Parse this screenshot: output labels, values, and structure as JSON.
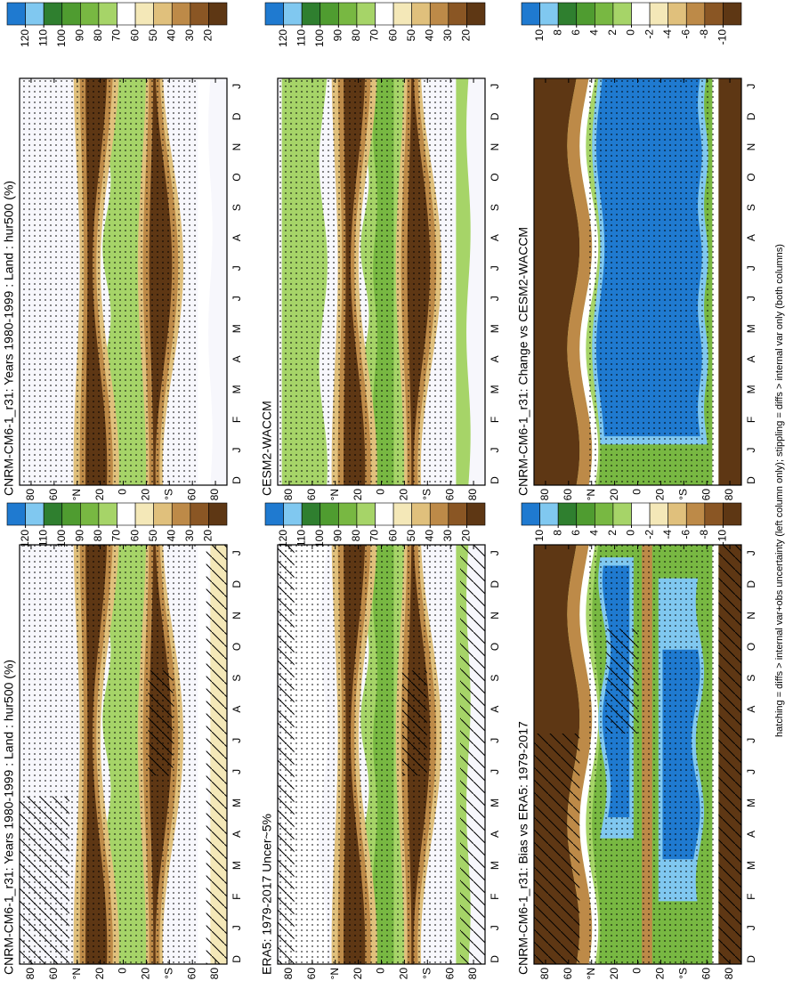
{
  "chart_data": [
    {
      "type": "heatmap",
      "title": "CNRM-CM6-1_r31: Years 1980-1999 : Land : hur500 (%)",
      "categories": [
        "D",
        "J",
        "F",
        "M",
        "A",
        "M",
        "J",
        "J",
        "A",
        "S",
        "O",
        "N",
        "D",
        "J"
      ],
      "ylim": [
        90,
        -90
      ],
      "yticks": [
        80,
        60,
        {
          "value": 40,
          "label": "°N"
        },
        20,
        0,
        {
          "value": -20,
          "label": "20"
        },
        {
          "value": -40,
          "label": "°S"
        },
        {
          "value": -60,
          "label": "60"
        },
        {
          "value": -80,
          "label": "80"
        }
      ],
      "colorbar": {
        "ticks": [
          120,
          110,
          100,
          90,
          80,
          70,
          60,
          50,
          40,
          30,
          20
        ],
        "colors": [
          "#1f7ad0",
          "#80c8f0",
          "#2f7f2f",
          "#4f9c30",
          "#78b842",
          "#a6d468",
          "#ffffff",
          "#f4e8b8",
          "#e0c07c",
          "#bd8a48",
          "#8a5624",
          "#5e3714"
        ]
      },
      "hatching": true
    },
    {
      "type": "heatmap",
      "title": "ERA5: 1979-2017 Uncer~5%",
      "categories": [
        "D",
        "J",
        "F",
        "M",
        "A",
        "M",
        "J",
        "J",
        "A",
        "S",
        "O",
        "N",
        "D",
        "J"
      ],
      "ylim": [
        90,
        -90
      ],
      "yticks": [
        80,
        60,
        {
          "value": 40,
          "label": "°N"
        },
        20,
        0,
        {
          "value": -20,
          "label": "20"
        },
        {
          "value": -40,
          "label": "°S"
        },
        {
          "value": -60,
          "label": "60"
        },
        {
          "value": -80,
          "label": "80"
        }
      ],
      "colorbar": {
        "ticks": [
          120,
          110,
          100,
          90,
          80,
          70,
          60,
          50,
          40,
          30,
          20
        ],
        "colors": [
          "#1f7ad0",
          "#80c8f0",
          "#2f7f2f",
          "#4f9c30",
          "#78b842",
          "#a6d468",
          "#ffffff",
          "#f4e8b8",
          "#e0c07c",
          "#bd8a48",
          "#8a5624",
          "#5e3714"
        ]
      },
      "hatching": true
    },
    {
      "type": "heatmap",
      "title": "CNRM-CM6-1_r31: Bias vs ERA5: 1979-2017",
      "categories": [
        "D",
        "J",
        "F",
        "M",
        "A",
        "M",
        "J",
        "J",
        "A",
        "S",
        "O",
        "N",
        "D",
        "J"
      ],
      "ylim": [
        90,
        -90
      ],
      "yticks": [
        80,
        60,
        {
          "value": 40,
          "label": "°N"
        },
        20,
        0,
        {
          "value": -20,
          "label": "20"
        },
        {
          "value": -40,
          "label": "°S"
        },
        {
          "value": -60,
          "label": "60"
        },
        {
          "value": -80,
          "label": "80"
        }
      ],
      "colorbar": {
        "ticks": [
          10,
          8,
          6,
          4,
          2,
          0,
          -2,
          -4,
          -6,
          -8,
          -10
        ],
        "colors": [
          "#1f7ad0",
          "#80c8f0",
          "#2f7f2f",
          "#4f9c30",
          "#78b842",
          "#a6d468",
          "#ffffff",
          "#f4e8b8",
          "#e0c07c",
          "#bd8a48",
          "#8a5624",
          "#5e3714"
        ]
      },
      "hatching": true
    },
    {
      "type": "heatmap",
      "title": "CNRM-CM6-1_r31: Years 1980-1999 : Land : hur500 (%)",
      "categories": [
        "D",
        "J",
        "F",
        "M",
        "A",
        "M",
        "J",
        "J",
        "A",
        "S",
        "O",
        "N",
        "D",
        "J"
      ],
      "ylim": [
        90,
        -90
      ],
      "yticks": [
        80,
        60,
        {
          "value": 40,
          "label": "°N"
        },
        20,
        0,
        {
          "value": -20,
          "label": "20"
        },
        {
          "value": -40,
          "label": "°S"
        },
        {
          "value": -60,
          "label": "60"
        },
        {
          "value": -80,
          "label": "80"
        }
      ],
      "colorbar": {
        "ticks": [
          120,
          110,
          100,
          90,
          80,
          70,
          60,
          50,
          40,
          30,
          20
        ],
        "colors": [
          "#1f7ad0",
          "#80c8f0",
          "#2f7f2f",
          "#4f9c30",
          "#78b842",
          "#a6d468",
          "#ffffff",
          "#f4e8b8",
          "#e0c07c",
          "#bd8a48",
          "#8a5624",
          "#5e3714"
        ]
      },
      "hatching": false
    },
    {
      "type": "heatmap",
      "title": "CESM2-WACCM",
      "categories": [
        "D",
        "J",
        "F",
        "M",
        "A",
        "M",
        "J",
        "J",
        "A",
        "S",
        "O",
        "N",
        "D",
        "J"
      ],
      "ylim": [
        90,
        -90
      ],
      "yticks": [
        80,
        60,
        {
          "value": 40,
          "label": "°N"
        },
        20,
        0,
        {
          "value": -20,
          "label": "20"
        },
        {
          "value": -40,
          "label": "°S"
        },
        {
          "value": -60,
          "label": "60"
        },
        {
          "value": -80,
          "label": "80"
        }
      ],
      "colorbar": {
        "ticks": [
          120,
          110,
          100,
          90,
          80,
          70,
          60,
          50,
          40,
          30,
          20
        ],
        "colors": [
          "#1f7ad0",
          "#80c8f0",
          "#2f7f2f",
          "#4f9c30",
          "#78b842",
          "#a6d468",
          "#ffffff",
          "#f4e8b8",
          "#e0c07c",
          "#bd8a48",
          "#8a5624",
          "#5e3714"
        ]
      },
      "hatching": false
    },
    {
      "type": "heatmap",
      "title": "CNRM-CM6-1_r31: Change vs CESM2-WACCM",
      "categories": [
        "D",
        "J",
        "F",
        "M",
        "A",
        "M",
        "J",
        "J",
        "A",
        "S",
        "O",
        "N",
        "D",
        "J"
      ],
      "ylim": [
        90,
        -90
      ],
      "yticks": [
        80,
        60,
        {
          "value": 40,
          "label": "°N"
        },
        20,
        0,
        {
          "value": -20,
          "label": "20"
        },
        {
          "value": -40,
          "label": "°S"
        },
        {
          "value": -60,
          "label": "60"
        },
        {
          "value": -80,
          "label": "80"
        }
      ],
      "colorbar": {
        "ticks": [
          10,
          8,
          6,
          4,
          2,
          0,
          -2,
          -4,
          -6,
          -8,
          -10
        ],
        "colors": [
          "#1f7ad0",
          "#80c8f0",
          "#2f7f2f",
          "#4f9c30",
          "#78b842",
          "#a6d468",
          "#ffffff",
          "#f4e8b8",
          "#e0c07c",
          "#bd8a48",
          "#8a5624",
          "#5e3714"
        ]
      },
      "hatching": false
    }
  ],
  "footnote": "hatching = diffs > internal var+obs uncertainty (left column only); stippling = diffs > internal var only (both columns)"
}
